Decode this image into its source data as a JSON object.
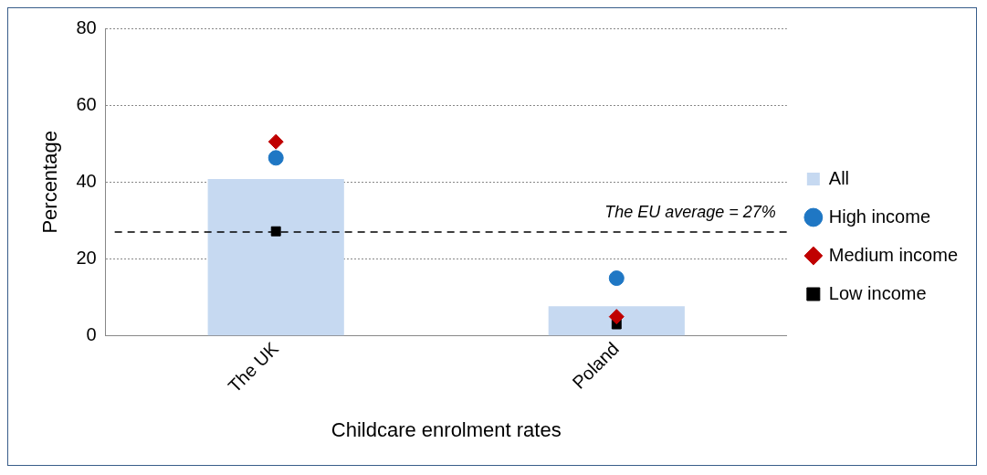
{
  "chart_data": {
    "type": "bar",
    "xlabel": "Childcare enrolment rates",
    "ylabel": "Percentage",
    "categories": [
      "The UK",
      "Poland"
    ],
    "series": [
      {
        "name": "All",
        "color": "#c6d9f1",
        "values": [
          40.8,
          7.7
        ]
      },
      {
        "name": "High income",
        "type": "scatter",
        "marker": "circle",
        "color": "#1f77c4",
        "x": [
          "The UK",
          "Poland"
        ],
        "values": [
          46.3,
          15.0
        ]
      },
      {
        "name": "Medium income",
        "type": "scatter",
        "marker": "diamond",
        "color": "#c00000",
        "x": [
          "The UK",
          "Poland"
        ],
        "values": [
          50.5,
          5.0
        ]
      },
      {
        "name": "Low income",
        "type": "scatter",
        "marker": "square",
        "color": "#000000",
        "x": [
          "The UK",
          "Poland"
        ],
        "values": [
          27.2,
          3.0
        ]
      }
    ],
    "ylim": [
      0,
      80
    ],
    "yticks": [
      0,
      20,
      40,
      60,
      80
    ],
    "grid": "y",
    "legend": "right",
    "ref_lines": [
      {
        "axis": "y",
        "value": 27,
        "label": "The EU average = 27%",
        "color": "#000000",
        "line_style": "dashed"
      }
    ]
  }
}
